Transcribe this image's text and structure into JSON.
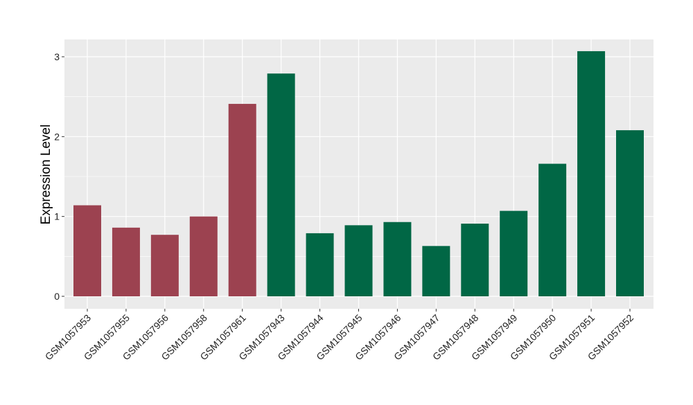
{
  "chart_data": {
    "type": "bar",
    "title": "",
    "xlabel": "",
    "ylabel": "Expression Level",
    "ylim": [
      -0.1,
      3.25
    ],
    "yticks": [
      0,
      1,
      2,
      3
    ],
    "grid": true,
    "legend": "none",
    "categories": [
      "GSM1057953",
      "GSM1057955",
      "GSM1057956",
      "GSM1057958",
      "GSM1057961",
      "GSM1057943",
      "GSM1057944",
      "GSM1057945",
      "GSM1057946",
      "GSM1057947",
      "GSM1057948",
      "GSM1057949",
      "GSM1057950",
      "GSM1057951",
      "GSM1057952"
    ],
    "values": [
      1.14,
      0.86,
      0.77,
      1.0,
      2.41,
      2.79,
      0.79,
      0.89,
      0.93,
      0.63,
      0.91,
      1.07,
      1.66,
      3.07,
      2.08
    ],
    "groups": [
      "a",
      "a",
      "a",
      "a",
      "a",
      "b",
      "b",
      "b",
      "b",
      "b",
      "b",
      "b",
      "b",
      "b",
      "b"
    ],
    "group_colors": {
      "a": "#9C4250",
      "b": "#016745"
    }
  }
}
